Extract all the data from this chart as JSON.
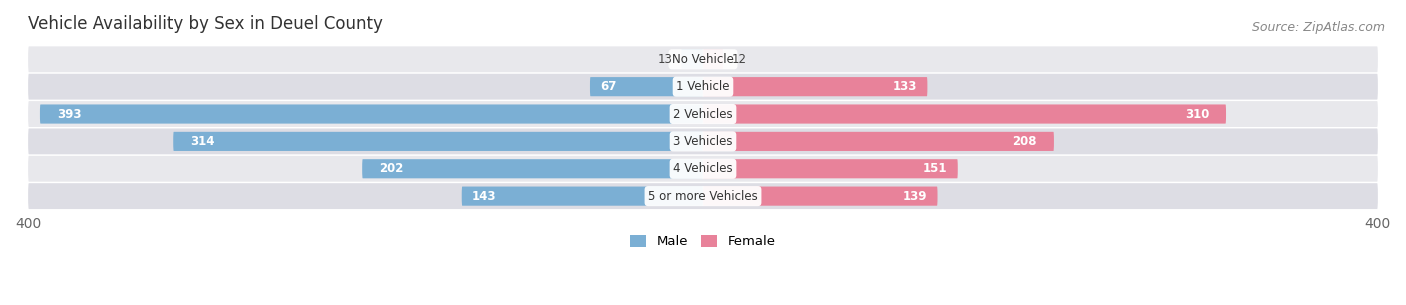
{
  "title": "Vehicle Availability by Sex in Deuel County",
  "source": "Source: ZipAtlas.com",
  "categories": [
    "No Vehicle",
    "1 Vehicle",
    "2 Vehicles",
    "3 Vehicles",
    "4 Vehicles",
    "5 or more Vehicles"
  ],
  "male_values": [
    13,
    67,
    393,
    314,
    202,
    143
  ],
  "female_values": [
    12,
    133,
    310,
    208,
    151,
    139
  ],
  "male_color": "#7bafd4",
  "female_color": "#e8829a",
  "row_bg_color_odd": "#e8e8ec",
  "row_bg_color_even": "#dddde4",
  "max_val": 400,
  "legend_male": "Male",
  "legend_female": "Female",
  "title_fontsize": 12,
  "source_fontsize": 9,
  "bar_fontsize": 8.5,
  "tick_fontsize": 10,
  "background_color": "#ffffff"
}
